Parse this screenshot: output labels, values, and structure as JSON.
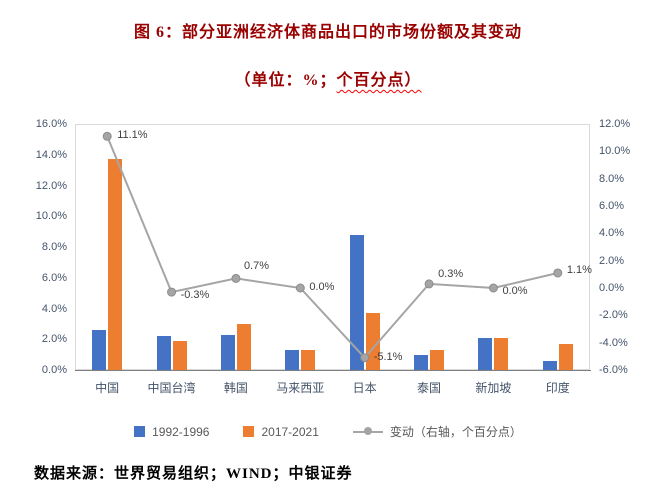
{
  "title": "图 6：部分亚洲经济体商品出口的市场份额及其变动",
  "subtitle": {
    "part1": "（单位：%；",
    "part2": "个百分点）"
  },
  "footer": "数据来源：世界贸易组织；WIND；中银证券",
  "colors": {
    "title": "#990000",
    "squiggle": "#ff0000",
    "bar_1992_1996": "#4472c4",
    "bar_2017_2021": "#ed7d31",
    "change_line": "#a5a5a5",
    "axis_text": "#44546a",
    "axis_line": "#7f7f7f",
    "plot_border": "#d9d9d9"
  },
  "chart_data": {
    "type": "bar",
    "subtype": "bar+line-combo",
    "title": "图 6：部分亚洲经济体商品出口的市场份额及其变动",
    "subtitle": "（单位：%；个百分点）",
    "categories": [
      "中国",
      "中国台湾",
      "韩国",
      "马来西亚",
      "日本",
      "泰国",
      "新加坡",
      "印度"
    ],
    "series": [
      {
        "name": "1992-1996",
        "type": "bar",
        "axis": "left",
        "color": "#4472c4",
        "values": [
          2.6,
          2.2,
          2.3,
          1.3,
          8.8,
          1.0,
          2.1,
          0.6
        ]
      },
      {
        "name": "2017-2021",
        "type": "bar",
        "axis": "left",
        "color": "#ed7d31",
        "values": [
          13.7,
          1.9,
          3.0,
          1.3,
          3.7,
          1.3,
          2.1,
          1.7
        ]
      },
      {
        "name": "变动（右轴，个百分点）",
        "type": "line",
        "axis": "right",
        "color": "#a5a5a5",
        "values": [
          11.1,
          -0.3,
          0.7,
          0.0,
          -5.1,
          0.3,
          0.0,
          1.1
        ],
        "labels": [
          "11.1%",
          "-0.3%",
          "0.7%",
          "0.0%",
          "-5.1%",
          "0.3%",
          "0.0%",
          "1.1%"
        ]
      }
    ],
    "left_axis": {
      "min": 0,
      "max": 16,
      "ticks": [
        "0.0%",
        "2.0%",
        "4.0%",
        "6.0%",
        "8.0%",
        "10.0%",
        "12.0%",
        "14.0%",
        "16.0%"
      ]
    },
    "right_axis": {
      "min": -6,
      "max": 12,
      "ticks": [
        "-6.0%",
        "-4.0%",
        "-2.0%",
        "0.0%",
        "2.0%",
        "4.0%",
        "6.0%",
        "8.0%",
        "10.0%",
        "12.0%"
      ]
    },
    "grid": false,
    "legend_position": "bottom"
  }
}
